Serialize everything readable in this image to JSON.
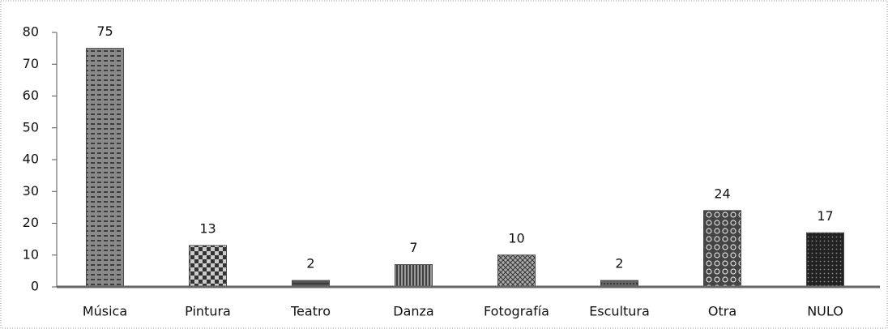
{
  "chart_data": {
    "type": "bar",
    "categories": [
      "Música",
      "Pintura",
      "Teatro",
      "Danza",
      "Fotografía",
      "Escultura",
      "Otra",
      "NULO"
    ],
    "values": [
      75,
      13,
      2,
      7,
      10,
      2,
      24,
      17
    ],
    "color": "#4a4a4a",
    "ylim": [
      0,
      80
    ],
    "yticks": [
      0,
      10,
      20,
      30,
      40,
      50,
      60,
      70,
      80
    ]
  }
}
